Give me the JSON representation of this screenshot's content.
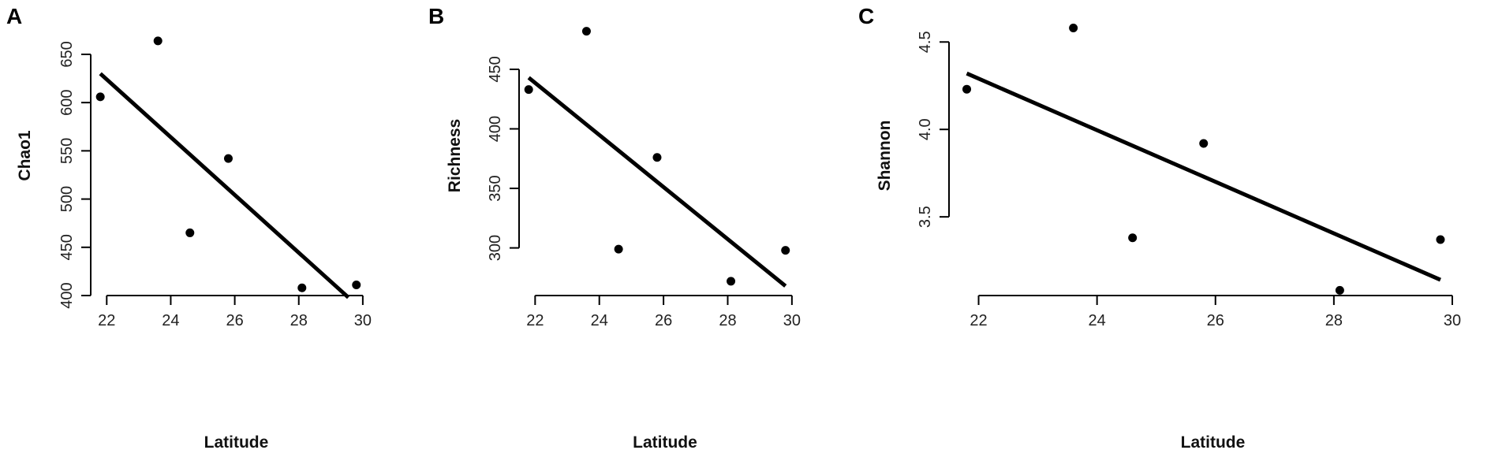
{
  "chart_data": [
    {
      "type": "scatter",
      "panel_label": "A",
      "xlabel": "Latitude",
      "ylabel": "Chao1",
      "xlim": [
        21.5,
        30.2
      ],
      "ylim": [
        400,
        690
      ],
      "xticks": [
        22,
        24,
        26,
        28,
        30
      ],
      "yticks": [
        400,
        450,
        500,
        550,
        600,
        650
      ],
      "points": [
        {
          "x": 21.8,
          "y": 606
        },
        {
          "x": 23.6,
          "y": 664
        },
        {
          "x": 24.6,
          "y": 465
        },
        {
          "x": 25.8,
          "y": 542
        },
        {
          "x": 28.1,
          "y": 408
        },
        {
          "x": 29.8,
          "y": 411
        }
      ],
      "fit_line": {
        "x": [
          21.8,
          29.55
        ],
        "y": [
          630,
          398
        ]
      }
    },
    {
      "type": "scatter",
      "panel_label": "B",
      "xlabel": "Latitude",
      "ylabel": "Richness",
      "xlim": [
        21.5,
        30.2
      ],
      "ylim": [
        260,
        495
      ],
      "xticks": [
        22,
        24,
        26,
        28,
        30
      ],
      "yticks": [
        300,
        350,
        400,
        450
      ],
      "points": [
        {
          "x": 21.8,
          "y": 433
        },
        {
          "x": 23.6,
          "y": 482
        },
        {
          "x": 24.6,
          "y": 299
        },
        {
          "x": 25.8,
          "y": 376
        },
        {
          "x": 28.1,
          "y": 272
        },
        {
          "x": 29.8,
          "y": 298
        }
      ],
      "fit_line": {
        "x": [
          21.8,
          29.8
        ],
        "y": [
          443,
          268
        ]
      }
    },
    {
      "type": "scatter",
      "panel_label": "C",
      "xlabel": "Latitude",
      "ylabel": "Shannon",
      "xlim": [
        21.5,
        30.2
      ],
      "ylim": [
        3.05,
        4.65
      ],
      "xticks": [
        22,
        24,
        26,
        28,
        30
      ],
      "yticks": [
        3.5,
        4.0,
        4.5
      ],
      "ytick_labels": [
        "3.5",
        "4.0",
        "4.5"
      ],
      "points": [
        {
          "x": 21.8,
          "y": 4.23
        },
        {
          "x": 23.6,
          "y": 4.58
        },
        {
          "x": 24.6,
          "y": 3.38
        },
        {
          "x": 25.8,
          "y": 3.92
        },
        {
          "x": 28.1,
          "y": 3.08
        },
        {
          "x": 29.8,
          "y": 3.37
        }
      ],
      "fit_line": {
        "x": [
          21.8,
          29.8
        ],
        "y": [
          4.32,
          3.14
        ]
      }
    }
  ]
}
